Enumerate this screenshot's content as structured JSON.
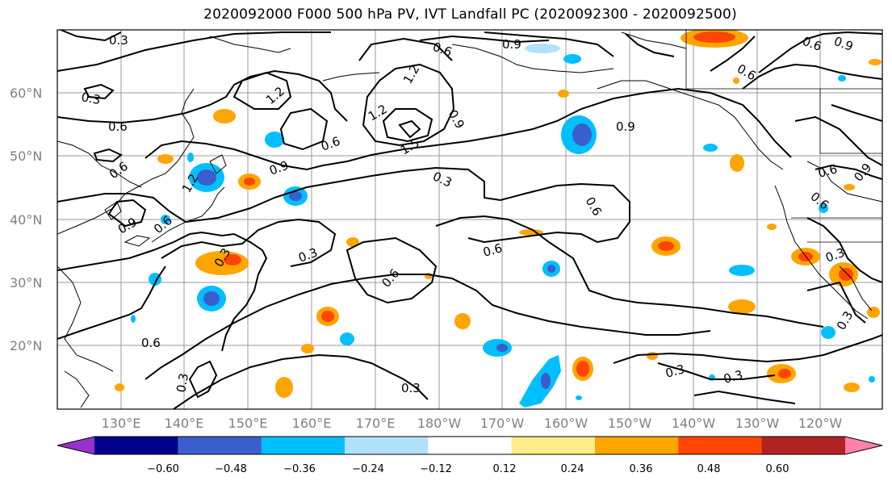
{
  "title": "2020092000 F000 500 hPa PV, IVT Landfall PC (2020092300 - 2020092500)",
  "lat_labels": [
    "60°N",
    "50°N",
    "40°N",
    "30°N",
    "20°N"
  ],
  "lon_labels": [
    "130°E",
    "140°E",
    "150°E",
    "160°E",
    "170°E",
    "180°W",
    "170°W",
    "160°W",
    "150°W",
    "140°W",
    "130°W",
    "120°W"
  ],
  "contour_labels": [
    "0.3",
    "0.6",
    "0.9",
    "1.2",
    "1.5"
  ],
  "colorbar": {
    "ticks": [
      "−0.60",
      "−0.48",
      "−0.36",
      "−0.24",
      "−0.12",
      "0.12",
      "0.24",
      "0.36",
      "0.48",
      "0.60"
    ],
    "colors": [
      "#9932CC",
      "#00008B",
      "#3A5FCD",
      "#00BFFF",
      "#B0E2FF",
      "#FFFFFF",
      "#FFEC8B",
      "#FFA500",
      "#FF4500",
      "#B22222",
      "#FF82AB"
    ]
  }
}
